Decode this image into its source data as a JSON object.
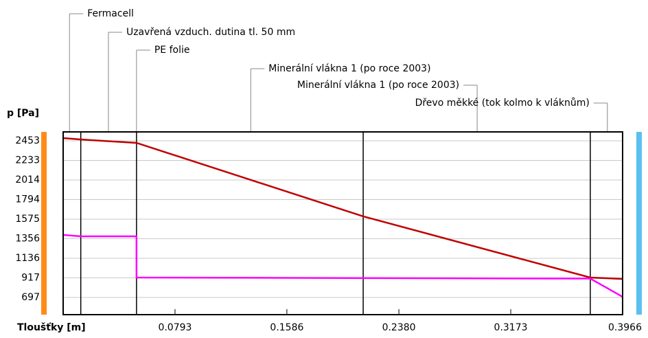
{
  "chart_data": {
    "type": "line",
    "y_label": "p [Pa]",
    "x_label": "Tloušťky [m]",
    "xlim": [
      0,
      0.3966
    ],
    "ylim": [
      504,
      2553
    ],
    "xticks": [
      0.0793,
      0.1586,
      {
        "value": 0.238,
        "label": "0.2380"
      },
      0.3173,
      0.3966
    ],
    "yticks": [
      2453,
      2233,
      2014,
      1794,
      1575,
      1356,
      1136,
      917,
      697
    ],
    "grid": true,
    "boundaries": [
      0.0125,
      0.052,
      0.2127,
      0.3737
    ],
    "annotations": [
      {
        "text": "Fermacell",
        "x": 0.0045
      },
      {
        "text": "Uzavřená vzduch. dutina tl. 50 mm",
        "x": 0.0321
      },
      {
        "text": "PE folie",
        "x": 0.052
      },
      {
        "text": "Minerální vlákna 1 (po roce 2003)",
        "x": 0.133
      },
      {
        "text": "Minerální vlákna 1 (po roce 2003)",
        "x": 0.2935
      },
      {
        "text": "Dřevo měkké (tok kolmo k vláknům)",
        "x": 0.3858
      }
    ],
    "series": [
      {
        "color": "#c00000",
        "x": [
          0,
          0.0125,
          0.052,
          0.2127,
          0.3737,
          0.3966
        ],
        "values": [
          2484,
          2468,
          2430,
          1606,
          920,
          905
        ]
      },
      {
        "color": "#ff00ff",
        "x": [
          0,
          0.0125,
          0.052,
          0.052,
          0.3737,
          0.3966
        ],
        "values": [
          1398,
          1382,
          1382,
          920,
          908,
          704
        ]
      }
    ]
  }
}
